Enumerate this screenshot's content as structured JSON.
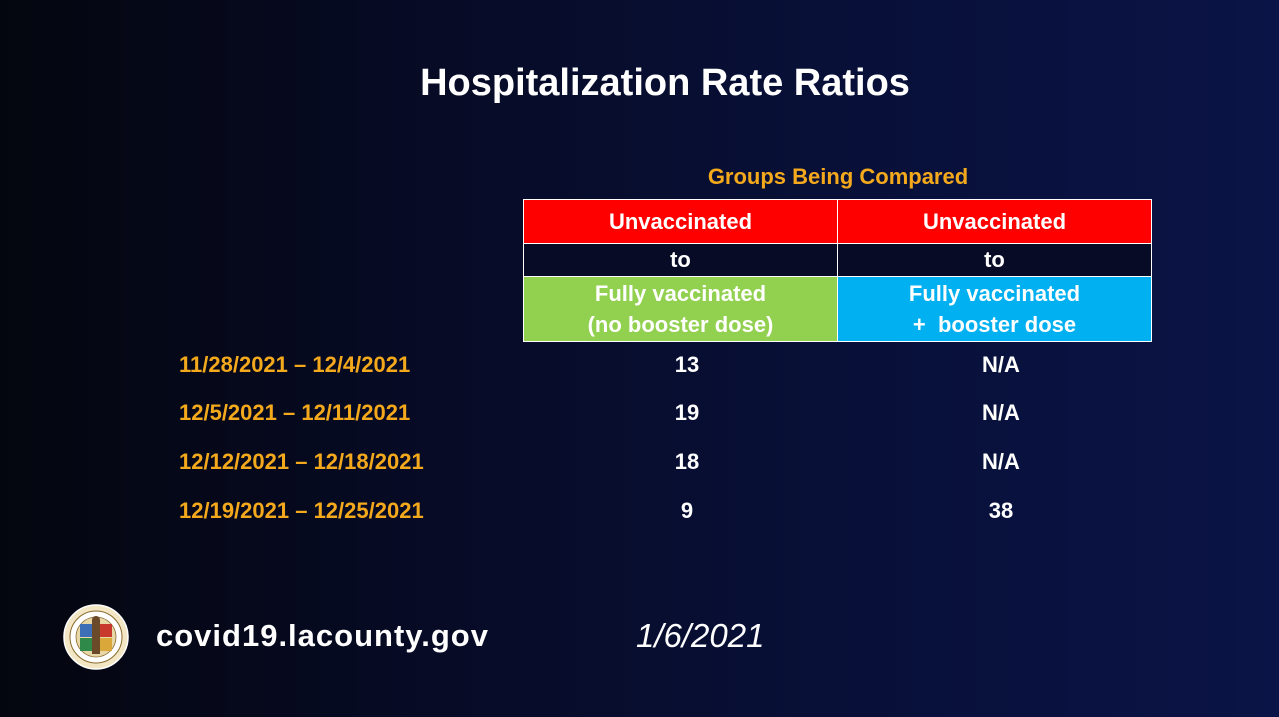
{
  "title": "Hospitalization Rate Ratios",
  "groups_label": "Groups Being Compared",
  "columns": [
    {
      "top": "Unvaccinated",
      "mid": "to",
      "bottom_line1": "Fully vaccinated",
      "bottom_line2": "(no booster dose)"
    },
    {
      "top": "Unvaccinated",
      "mid": "to",
      "bottom_line1": "Fully vaccinated",
      "bottom_line2": "+  booster dose"
    }
  ],
  "rows": [
    {
      "date": "11/28/2021 – 12/4/2021",
      "v1": "13",
      "v2": "N/A"
    },
    {
      "date": "12/5/2021 – 12/11/2021",
      "v1": "19",
      "v2": "N/A"
    },
    {
      "date": "12/12/2021 – 12/18/2021",
      "v1": "18",
      "v2": "N/A"
    },
    {
      "date": "12/19/2021 – 12/25/2021",
      "v1": "9",
      "v2": "38"
    }
  ],
  "footer": {
    "url": "covid19.lacounty.gov",
    "date": "1/6/2021",
    "seal_icon": "county-seal-icon"
  },
  "colors": {
    "accent_orange": "#f4a91c",
    "red_header": "#ff0000",
    "green_header": "#92d050",
    "blue_header": "#00b0f0"
  }
}
